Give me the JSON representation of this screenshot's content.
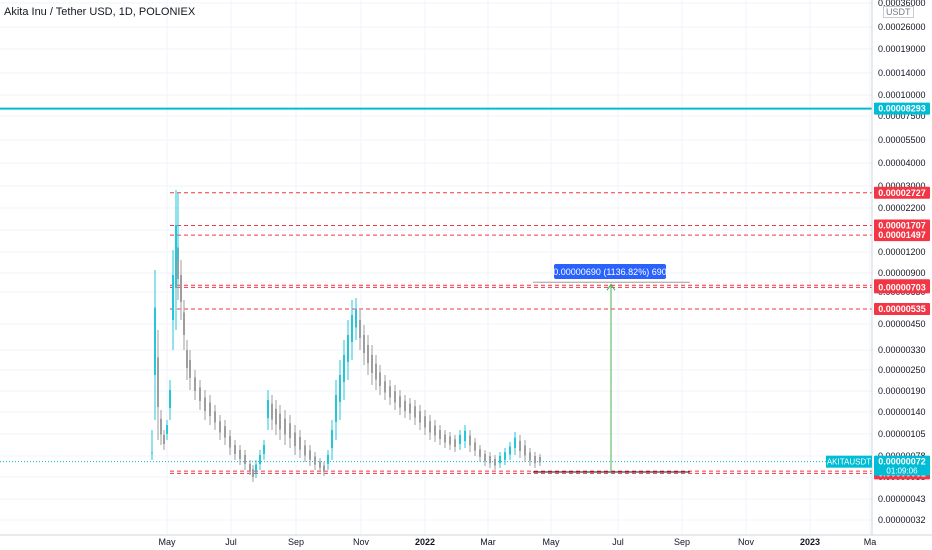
{
  "chart_data": {
    "type": "candlestick",
    "title": "Akita Inu / Tether USD, 1D, POLONIEX",
    "unit": "USDT",
    "symbol_label": "AKITAUSDT",
    "countdown": "01:09:06",
    "y_scale": "log",
    "x_ticks": [
      "May",
      "Jul",
      "Sep",
      "Nov",
      "2022",
      "Mar",
      "May",
      "Jul",
      "Sep",
      "Nov",
      "2023",
      "Ma"
    ],
    "y_ticks": [
      "0.00036000",
      "0.00026000",
      "0.00019000",
      "0.00014000",
      "0.00010000",
      "0.00007500",
      "0.00005500",
      "0.00004000",
      "0.00003000",
      "0.00002200",
      "0.00001600",
      "0.00001200",
      "0.00000900",
      "0.00000650",
      "0.00000450",
      "0.00000330",
      "0.00000250",
      "0.00000190",
      "0.00000140",
      "0.00000105",
      "0.00000078",
      "0.00000058",
      "0.00000043",
      "0.00000032"
    ],
    "horizontal_lines": [
      {
        "value": "0.00008293",
        "color": "#00bcd4",
        "style": "solid"
      },
      {
        "value": "0.00002727",
        "color": "#f23645",
        "style": "dashed"
      },
      {
        "value": "0.00001707",
        "color": "#f23645",
        "style": "dashed"
      },
      {
        "value": "0.00001497",
        "color": "#f23645",
        "style": "dashed"
      },
      {
        "value": "0.00000729",
        "color": "#f23645",
        "style": "dashed"
      },
      {
        "value": "0.00000703",
        "color": "#f23645",
        "style": "dashed"
      },
      {
        "value": "0.00000535",
        "color": "#f23645",
        "style": "dashed"
      },
      {
        "value": "0.00000063",
        "color": "#f23645",
        "style": "dashed"
      },
      {
        "value": "0.00000061",
        "color": "#f23645",
        "style": "dashed"
      }
    ],
    "current_price": {
      "value": "0.00000072",
      "color": "#00bcd4"
    },
    "measure_annotation": "0.00000690 (1136.82%) 690",
    "colors": {
      "up": "#26c6da",
      "down": "#9e9e9e",
      "level": "#f23645",
      "accent": "#00bcd4",
      "measure": "#4caf50",
      "tooltip": "#2962ff"
    }
  }
}
